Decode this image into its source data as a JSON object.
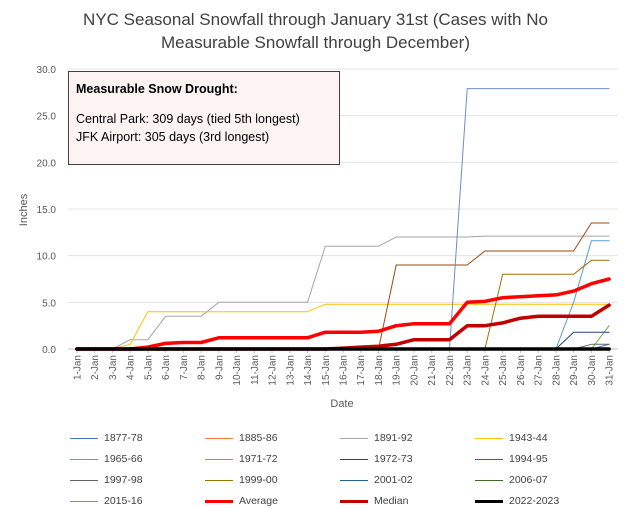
{
  "chart_data": {
    "type": "line",
    "title_line1": "NYC Seasonal Snowfall through January 31st (Cases with No",
    "title_line2": "Measurable Snowfall through December)",
    "xlabel": "Date",
    "ylabel": "Inches",
    "ylim": [
      0,
      30
    ],
    "yticks": [
      "0.0",
      "5.0",
      "10.0",
      "15.0",
      "20.0",
      "25.0",
      "30.0"
    ],
    "grid": "horizontal",
    "legend_position": "bottom",
    "categories": [
      "1-Jan",
      "2-Jan",
      "3-Jan",
      "4-Jan",
      "5-Jan",
      "6-Jan",
      "7-Jan",
      "8-Jan",
      "9-Jan",
      "10-Jan",
      "11-Jan",
      "12-Jan",
      "13-Jan",
      "14-Jan",
      "15-Jan",
      "16-Jan",
      "17-Jan",
      "18-Jan",
      "19-Jan",
      "20-Jan",
      "21-Jan",
      "22-Jan",
      "23-Jan",
      "24-Jan",
      "25-Jan",
      "26-Jan",
      "27-Jan",
      "28-Jan",
      "29-Jan",
      "30-Jan",
      "31-Jan"
    ],
    "annotation": {
      "heading": "Measurable Snow Drought:",
      "line1": "Central Park: 309 days (tied 5th longest)",
      "line2": "JFK Airport: 305 days (3rd longest)"
    },
    "series": [
      {
        "name": "1877-78",
        "color": "#4472c4",
        "width": 1,
        "values": [
          0,
          0,
          0,
          0,
          0,
          0,
          0,
          0,
          0,
          0,
          0,
          0,
          0,
          0,
          0,
          0,
          0,
          0,
          0,
          0,
          0,
          0,
          0,
          0,
          0,
          0,
          0,
          0,
          0,
          0,
          0.5
        ]
      },
      {
        "name": "1885-86",
        "color": "#ed7d31",
        "width": 1,
        "values": [
          0,
          0,
          0,
          0,
          0,
          0,
          0,
          0,
          0,
          0,
          0,
          0,
          0,
          0,
          0,
          0,
          0,
          0,
          0,
          0,
          0,
          0,
          0,
          0,
          0,
          0,
          0,
          0,
          0,
          0,
          0
        ]
      },
      {
        "name": "1891-92",
        "color": "#a5a5a5",
        "width": 1,
        "values": [
          0,
          0,
          0,
          1,
          1,
          3.5,
          3.5,
          3.5,
          5,
          5,
          5,
          5,
          5,
          5,
          11,
          11,
          11,
          11,
          12,
          12,
          12,
          12,
          12,
          12.1,
          12.1,
          12.1,
          12.1,
          12.1,
          12.1,
          12.1,
          12.1
        ]
      },
      {
        "name": "1943-44",
        "color": "#ffc000",
        "width": 1,
        "values": [
          0,
          0,
          0,
          0.5,
          4,
          4,
          4,
          4,
          4,
          4,
          4,
          4,
          4,
          4,
          4.8,
          4.8,
          4.8,
          4.8,
          4.8,
          4.8,
          4.8,
          4.8,
          4.8,
          4.8,
          4.8,
          4.8,
          4.8,
          4.8,
          4.8,
          4.8,
          4.8
        ]
      },
      {
        "name": "1965-66",
        "color": "#5b9bd5",
        "width": 1,
        "values": [
          0,
          0,
          0,
          0,
          0,
          0,
          0,
          0,
          0,
          0,
          0,
          0,
          0,
          0,
          0,
          0,
          0,
          0,
          0,
          0,
          0,
          0,
          0,
          0,
          0,
          0,
          0,
          0,
          5,
          11.6,
          11.6
        ]
      },
      {
        "name": "1971-72",
        "color": "#70ad47",
        "width": 1,
        "values": [
          0,
          0,
          0,
          0,
          0,
          0,
          0,
          0,
          0,
          0,
          0,
          0,
          0,
          0,
          0,
          0,
          0,
          0,
          0,
          0,
          0,
          0,
          0,
          0,
          0,
          0,
          0,
          0,
          0,
          0,
          2.5
        ]
      },
      {
        "name": "1972-73",
        "color": "#264478",
        "width": 1,
        "values": [
          0,
          0,
          0,
          0,
          0,
          0,
          0,
          0,
          0,
          0,
          0,
          0,
          0,
          0,
          0,
          0,
          0,
          0,
          0,
          0,
          0,
          0,
          0,
          0,
          0,
          0,
          0,
          0,
          1.8,
          1.8,
          1.8
        ]
      },
      {
        "name": "1994-95",
        "color": "#9e480e",
        "width": 1,
        "values": [
          0,
          0,
          0,
          0,
          0,
          0,
          0,
          0,
          0,
          0,
          0,
          0,
          0,
          0,
          0,
          0,
          0,
          0,
          9,
          9,
          9,
          9,
          9,
          10.5,
          10.5,
          10.5,
          10.5,
          10.5,
          10.5,
          13.5,
          13.5
        ]
      },
      {
        "name": "1997-98",
        "color": "#636363",
        "width": 1,
        "values": [
          0,
          0,
          0,
          0,
          0,
          0,
          0,
          0,
          0,
          0,
          0,
          0,
          0,
          0,
          0,
          0,
          0,
          0,
          0,
          0,
          0,
          0,
          0,
          0,
          0,
          0,
          0,
          0,
          0,
          0.5,
          0.5
        ]
      },
      {
        "name": "1999-00",
        "color": "#997300",
        "width": 1,
        "values": [
          0,
          0,
          0,
          0,
          0,
          0,
          0,
          0,
          0,
          0,
          0,
          0,
          0,
          0,
          0,
          0,
          0,
          0,
          0,
          0,
          0,
          0,
          0,
          0,
          8,
          8,
          8,
          8,
          8,
          9.5,
          9.5
        ]
      },
      {
        "name": "2001-02",
        "color": "#255e91",
        "width": 1,
        "values": [
          0,
          0,
          0,
          0,
          0,
          0,
          0,
          0,
          0,
          0,
          0,
          0,
          0,
          0,
          0,
          0,
          0,
          0,
          0,
          0,
          0,
          0,
          0,
          0,
          0,
          0,
          0,
          0,
          0,
          0,
          0
        ]
      },
      {
        "name": "2006-07",
        "color": "#43682b",
        "width": 1,
        "values": [
          0,
          0,
          0,
          0,
          0,
          0,
          0,
          0,
          0,
          0,
          0,
          0,
          0,
          0,
          0,
          0,
          0,
          0,
          0,
          0,
          0,
          0,
          0,
          0,
          0,
          0,
          0,
          0,
          0,
          0,
          0
        ]
      },
      {
        "name": "2015-16",
        "color": "#698ed0",
        "width": 1,
        "values": [
          0,
          0,
          0,
          0,
          0,
          0,
          0,
          0,
          0,
          0,
          0,
          0,
          0,
          0,
          0,
          0,
          0,
          0,
          0,
          0,
          0,
          0,
          27.9,
          27.9,
          27.9,
          27.9,
          27.9,
          27.9,
          27.9,
          27.9,
          27.9
        ]
      },
      {
        "name": "Average",
        "color": "#ff0000",
        "width": 3.5,
        "values": [
          0,
          0,
          0,
          0,
          0.2,
          0.6,
          0.7,
          0.7,
          1.2,
          1.2,
          1.2,
          1.2,
          1.2,
          1.2,
          1.8,
          1.8,
          1.8,
          1.9,
          2.5,
          2.7,
          2.7,
          2.7,
          5,
          5.1,
          5.5,
          5.6,
          5.7,
          5.8,
          6.2,
          7,
          7.5
        ]
      },
      {
        "name": "Median",
        "color": "#c00000",
        "width": 3.5,
        "values": [
          0,
          0,
          0,
          0,
          0,
          0,
          0,
          0,
          0,
          0,
          0,
          0,
          0,
          0,
          0,
          0.1,
          0.2,
          0.3,
          0.5,
          1,
          1,
          1,
          2.5,
          2.5,
          2.8,
          3.3,
          3.5,
          3.5,
          3.5,
          3.5,
          4.7
        ]
      },
      {
        "name": "2022-2023",
        "color": "#000000",
        "width": 3.5,
        "values": [
          0,
          0,
          0,
          0,
          0,
          0,
          0,
          0,
          0,
          0,
          0,
          0,
          0,
          0,
          0,
          0,
          0,
          0,
          0,
          0,
          0,
          0,
          0,
          0,
          0,
          0,
          0,
          0,
          0,
          0,
          0
        ]
      }
    ]
  }
}
